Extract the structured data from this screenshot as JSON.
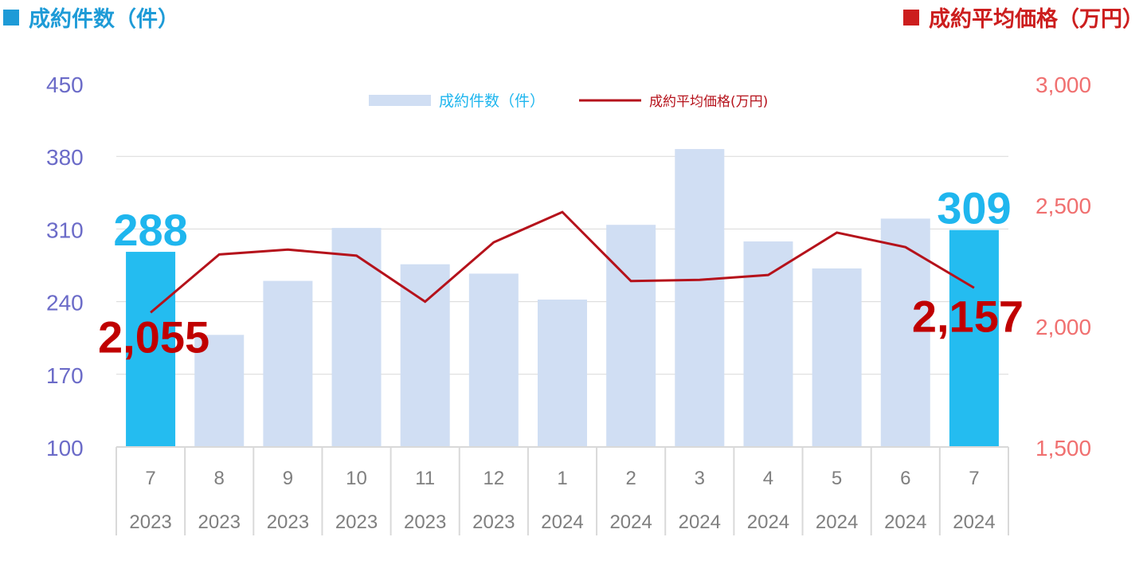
{
  "header": {
    "left_title": "成約件数（件）",
    "right_title": "成約平均価格（万円）"
  },
  "colors": {
    "left_header": "#1E9BD7",
    "right_header": "#CC1E1E",
    "bar_default": "#D0DEF3",
    "bar_highlight": "#24BCF0",
    "line": "#B5121B",
    "left_axis_text": "#6B6BC8",
    "right_axis_text": "#F07070",
    "label_blue": "#1FB6EE",
    "label_red": "#C00000",
    "grid": "#D9D9D9",
    "category_text": "#7F7F7F"
  },
  "chart_data": {
    "type": "bar",
    "categories": [
      "7",
      "8",
      "9",
      "10",
      "11",
      "12",
      "1",
      "2",
      "3",
      "4",
      "5",
      "6",
      "7"
    ],
    "category_years": [
      "2023",
      "2023",
      "2023",
      "2023",
      "2023",
      "2023",
      "2024",
      "2024",
      "2024",
      "2024",
      "2024",
      "2024",
      "2024"
    ],
    "series": [
      {
        "name": "成約件数（件）",
        "type": "bar",
        "axis": "left",
        "values": [
          288,
          208,
          260,
          311,
          276,
          267,
          242,
          314,
          387,
          298,
          272,
          320,
          309
        ],
        "highlight": [
          true,
          false,
          false,
          false,
          false,
          false,
          false,
          false,
          false,
          false,
          false,
          false,
          true
        ]
      },
      {
        "name": "成約平均価格(万円)",
        "type": "line",
        "axis": "right",
        "values": [
          2055,
          2295,
          2315,
          2290,
          2100,
          2345,
          2470,
          2185,
          2190,
          2210,
          2385,
          2325,
          2157
        ]
      }
    ],
    "left_axis": {
      "min": 100,
      "max": 450,
      "ticks": [
        "100",
        "170",
        "240",
        "310",
        "380",
        "450"
      ]
    },
    "right_axis": {
      "min": 1500,
      "max": 3000,
      "ticks": [
        "1,500",
        "2,000",
        "2,500",
        "3,000"
      ]
    },
    "annotations": [
      {
        "text": "288",
        "series": 0,
        "index": 0
      },
      {
        "text": "309",
        "series": 0,
        "index": 12
      },
      {
        "text": "2,055",
        "series": 1,
        "index": 0
      },
      {
        "text": "2,157",
        "series": 1,
        "index": 12
      }
    ],
    "legend": {
      "position": "top-center",
      "items": [
        "成約件数（件）",
        "成約平均価格(万円)"
      ]
    },
    "grid": true
  }
}
